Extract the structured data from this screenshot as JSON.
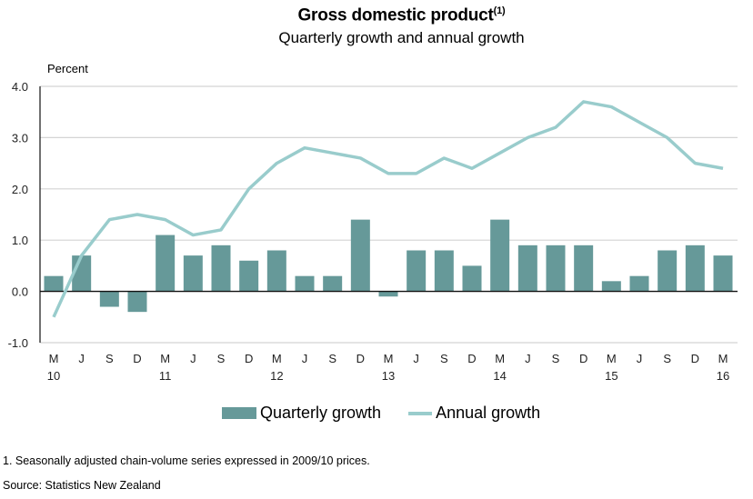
{
  "chart_data": {
    "type": "bar",
    "title": "Gross domestic product",
    "title_superscript": "(1)",
    "subtitle": "Quarterly growth and annual growth",
    "ylabel": "Percent",
    "xlabel": "",
    "ylim": [
      -1.0,
      4.0
    ],
    "yticks": [
      "-1.0",
      "0.0",
      "1.0",
      "2.0",
      "3.0",
      "4.0"
    ],
    "ytick_values": [
      -1,
      0,
      1,
      2,
      3,
      4
    ],
    "grid": true,
    "categories": [
      "M",
      "J",
      "S",
      "D",
      "M",
      "J",
      "S",
      "D",
      "M",
      "J",
      "S",
      "D",
      "M",
      "J",
      "S",
      "D",
      "M",
      "J",
      "S",
      "D",
      "M",
      "J",
      "S",
      "D",
      "M"
    ],
    "year_labels": [
      {
        "index": 0,
        "label": "10"
      },
      {
        "index": 4,
        "label": "11"
      },
      {
        "index": 8,
        "label": "12"
      },
      {
        "index": 12,
        "label": "13"
      },
      {
        "index": 16,
        "label": "14"
      },
      {
        "index": 20,
        "label": "15"
      },
      {
        "index": 24,
        "label": "16"
      }
    ],
    "series": [
      {
        "name": "Quarterly growth",
        "type": "bar",
        "color": "#669999",
        "values": [
          0.3,
          0.7,
          -0.3,
          -0.4,
          1.1,
          0.7,
          0.9,
          0.6,
          0.8,
          0.3,
          0.3,
          1.4,
          -0.1,
          0.8,
          0.8,
          0.5,
          1.4,
          0.9,
          0.9,
          0.9,
          0.2,
          0.3,
          0.8,
          0.9,
          0.7
        ]
      },
      {
        "name": "Annual growth",
        "type": "line",
        "color": "#99cccc",
        "values": [
          -0.5,
          0.7,
          1.4,
          1.5,
          1.4,
          1.1,
          1.2,
          2.0,
          2.5,
          2.8,
          2.7,
          2.6,
          2.3,
          2.3,
          2.6,
          2.4,
          2.7,
          3.0,
          3.2,
          3.7,
          3.6,
          3.3,
          3.0,
          2.5,
          2.4
        ]
      }
    ],
    "legend": {
      "placement": "bottom",
      "entries": [
        "Quarterly growth",
        "Annual growth"
      ]
    }
  },
  "footnote": "1.  Seasonally adjusted chain-volume series expressed in 2009/10 prices.",
  "source": "Source: Statistics New Zealand"
}
